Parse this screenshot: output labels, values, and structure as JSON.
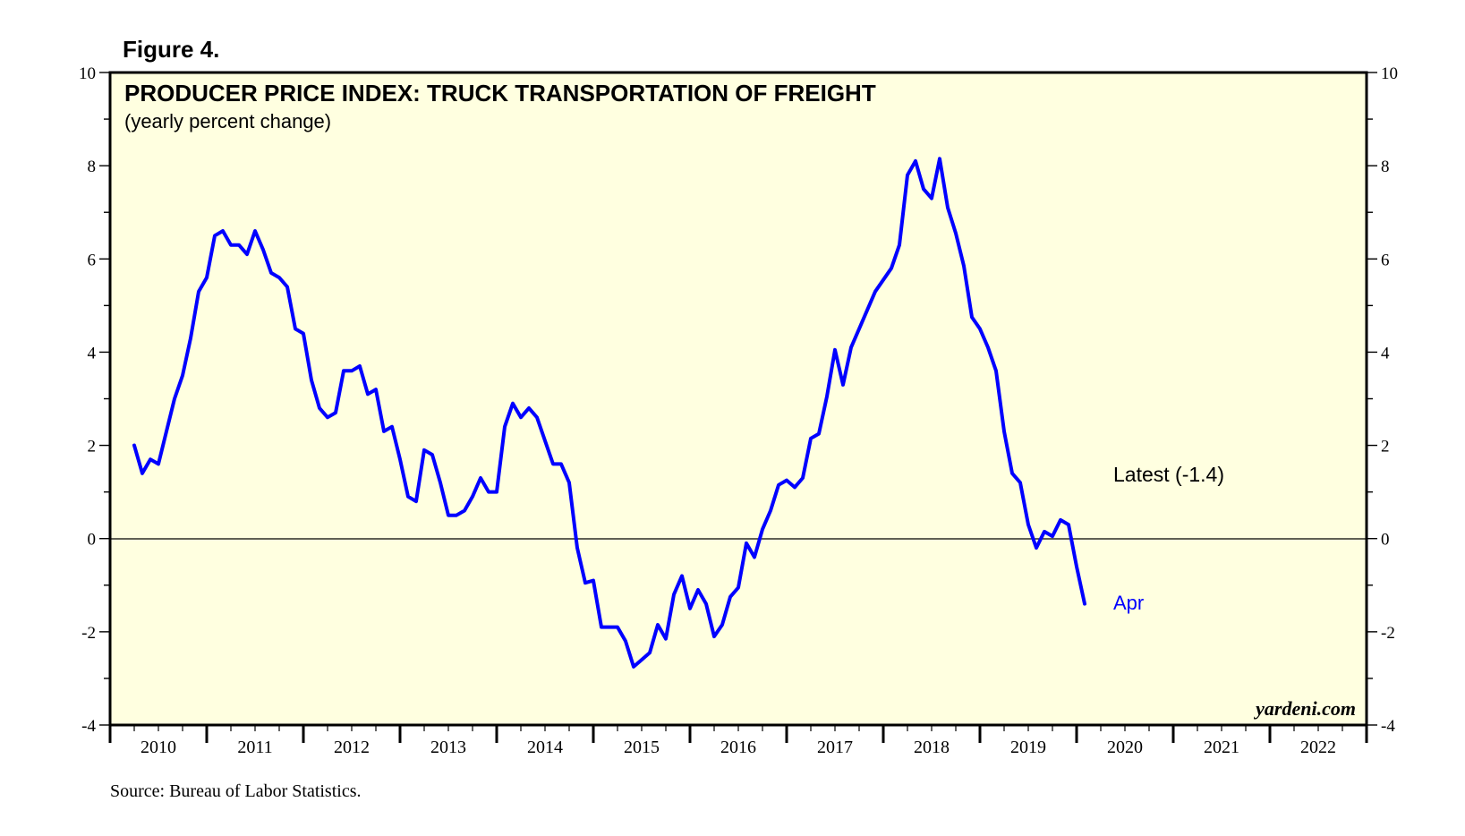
{
  "figure_label": "Figure 4.",
  "source": "Source: Bureau of Labor Statistics.",
  "watermark": "yardeni.com",
  "colors": {
    "plot_background": "#ffffe0",
    "series_line": "#0000ff",
    "axis": "#000000"
  },
  "chart_data": {
    "type": "line",
    "title": "PRODUCER PRICE INDEX: TRUCK TRANSPORTATION OF FREIGHT",
    "subtitle": "(yearly percent change)",
    "xlabel": "",
    "ylabel": "",
    "ylim": [
      -4,
      10
    ],
    "xlim": [
      2010.0,
      2023.0
    ],
    "y_ticks": [
      -4,
      -2,
      0,
      2,
      4,
      6,
      8,
      10
    ],
    "x_tick_labels": [
      "2010",
      "2011",
      "2012",
      "2013",
      "2014",
      "2015",
      "2016",
      "2017",
      "2018",
      "2019",
      "2020",
      "2021",
      "2022"
    ],
    "grid": false,
    "zero_line": true,
    "annotations": {
      "latest": "Latest (-1.4)",
      "last_point_label": "Apr"
    },
    "series": [
      {
        "name": "PPI: Truck Transportation of Freight, yearly % change",
        "start": "2010-04",
        "frequency": "monthly",
        "values": [
          2.0,
          1.4,
          1.7,
          1.6,
          2.3,
          3.0,
          3.5,
          4.3,
          5.3,
          5.6,
          6.5,
          6.6,
          6.3,
          6.3,
          6.1,
          6.6,
          6.2,
          5.7,
          5.6,
          5.4,
          4.5,
          4.4,
          3.4,
          2.8,
          2.6,
          2.7,
          3.6,
          3.6,
          3.7,
          3.1,
          3.2,
          2.3,
          2.4,
          1.7,
          0.9,
          0.8,
          1.9,
          1.8,
          1.2,
          0.5,
          0.5,
          0.6,
          0.9,
          1.3,
          1.0,
          1.0,
          2.4,
          2.9,
          2.6,
          2.8,
          2.6,
          2.1,
          1.6,
          1.6,
          1.2,
          -0.2,
          -0.95,
          -0.9,
          -1.9,
          -1.9,
          -1.9,
          -2.2,
          -2.75,
          -2.6,
          -2.45,
          -1.85,
          -2.15,
          -1.2,
          -0.8,
          -1.5,
          -1.1,
          -1.4,
          -2.1,
          -1.85,
          -1.25,
          -1.05,
          -0.1,
          -0.4,
          0.2,
          0.6,
          1.15,
          1.25,
          1.1,
          1.3,
          2.15,
          2.25,
          3.05,
          4.05,
          3.3,
          4.1,
          4.5,
          4.9,
          5.3,
          5.55,
          5.8,
          6.3,
          7.8,
          8.1,
          7.5,
          7.3,
          8.15,
          7.1,
          6.55,
          5.85,
          4.75,
          4.5,
          4.1,
          3.6,
          2.3,
          1.4,
          1.2,
          0.3,
          -0.2,
          0.15,
          0.05,
          0.4,
          0.3,
          -0.6,
          -1.4
        ]
      }
    ]
  }
}
